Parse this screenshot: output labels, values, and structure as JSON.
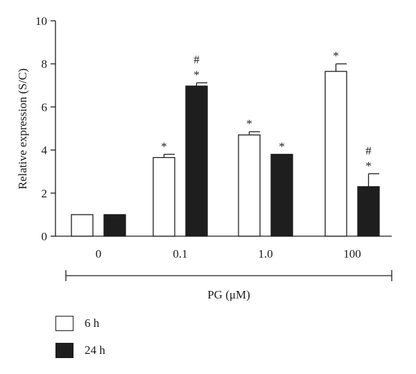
{
  "chart_data": {
    "type": "bar",
    "categories": [
      "0",
      "0.1",
      "1.0",
      "100"
    ],
    "series": [
      {
        "name": "6 h",
        "values": [
          1.0,
          3.65,
          4.7,
          7.65
        ],
        "errors": [
          0,
          0.15,
          0.15,
          0.35
        ],
        "annotations": [
          "",
          "*",
          "*",
          "*"
        ],
        "fill": "#ffffff"
      },
      {
        "name": "24 h",
        "values": [
          1.0,
          6.97,
          3.8,
          2.3
        ],
        "errors": [
          0,
          0.15,
          0,
          0.6
        ],
        "annotations": [
          "",
          "*\n#",
          "*",
          "*\n#"
        ],
        "fill": "#1e1e1e"
      }
    ],
    "title": "",
    "ylabel": "Relative expression (S/C)",
    "xlabel": "PG (μM)",
    "ylim": [
      0,
      10
    ],
    "yticks": [
      0,
      2,
      4,
      6,
      8,
      10
    ],
    "grid": false,
    "legend_position": "bottom-left"
  },
  "legend": {
    "items": [
      {
        "label": "6 h",
        "color": "#ffffff"
      },
      {
        "label": "24 h",
        "color": "#1e1e1e"
      }
    ]
  }
}
